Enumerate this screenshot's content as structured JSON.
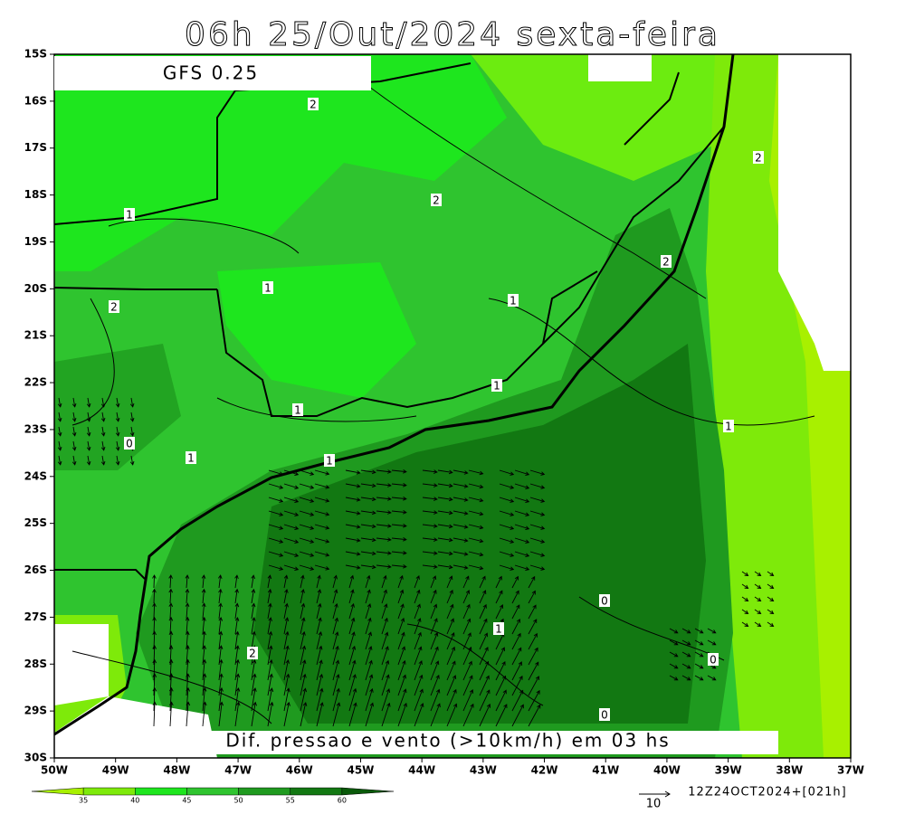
{
  "header": {
    "title": "06h 25/Out/2024 sexta-feira",
    "model": "GFS 0.25",
    "caption": "Dif. pressao e vento (>10km/h) em 03 hs"
  },
  "axes": {
    "lat_labels": [
      "15S",
      "16S",
      "17S",
      "18S",
      "19S",
      "20S",
      "21S",
      "22S",
      "23S",
      "24S",
      "25S",
      "26S",
      "27S",
      "28S",
      "29S",
      "30S"
    ],
    "lon_labels": [
      "50W",
      "49W",
      "48W",
      "47W",
      "46W",
      "45W",
      "44W",
      "43W",
      "42W",
      "41W",
      "40W",
      "39W",
      "38W",
      "37W"
    ]
  },
  "contour_labels": [
    "2",
    "2",
    "2",
    "1",
    "2",
    "1",
    "2",
    "1",
    "1",
    "1",
    "0",
    "1",
    "1",
    "1",
    "0",
    "1",
    "2",
    "0",
    "0"
  ],
  "colorbar": {
    "labels": [
      "35",
      "40",
      "45",
      "50",
      "55",
      "60"
    ]
  },
  "footer": {
    "scale": "10",
    "timestamp": "12Z24OCT2024+[021h]"
  }
}
